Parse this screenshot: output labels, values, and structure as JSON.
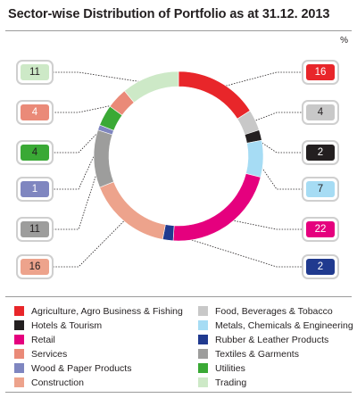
{
  "title": "Sector-wise Distribution of Portfolio as at 31.12. 2013",
  "unit_label": "%",
  "chart_data": {
    "type": "pie",
    "donut": true,
    "title": "Sector-wise Distribution of Portfolio as at 31.12. 2013",
    "unit": "%",
    "slices": [
      {
        "label": "Agriculture, Agro Business & Fishing",
        "value": 16,
        "color": "#e8262a",
        "text_color": "#ffffff"
      },
      {
        "label": "Food, Beverages & Tobacco",
        "value": 4,
        "color": "#c8c8c8",
        "text_color": "#231f20"
      },
      {
        "label": "Hotels & Tourism",
        "value": 2,
        "color": "#231f20",
        "text_color": "#ffffff"
      },
      {
        "label": "Metals, Chemicals & Engineering",
        "value": 7,
        "color": "#a6dcf4",
        "text_color": "#231f20"
      },
      {
        "label": "Retail",
        "value": 22,
        "color": "#e5007e",
        "text_color": "#ffffff"
      },
      {
        "label": "Rubber & Leather Products",
        "value": 2,
        "color": "#203a8f",
        "text_color": "#ffffff"
      },
      {
        "label": "Construction",
        "value": 16,
        "color": "#eda38c",
        "text_color": "#231f20"
      },
      {
        "label": "Textiles & Garments",
        "value": 11,
        "color": "#9d9d9c",
        "text_color": "#231f20"
      },
      {
        "label": "Wood & Paper Products",
        "value": 1,
        "color": "#7f86c0",
        "text_color": "#ffffff"
      },
      {
        "label": "Utilities",
        "value": 4,
        "color": "#3aa935",
        "text_color": "#231f20"
      },
      {
        "label": "Services",
        "value": 4,
        "color": "#ea8a78",
        "text_color": "#ffffff"
      },
      {
        "label": "Trading",
        "value": 11,
        "color": "#cde9c7",
        "text_color": "#231f20"
      }
    ],
    "legend": [
      {
        "label": "Agriculture, Agro Business & Fishing",
        "color": "#e8262a"
      },
      {
        "label": "Food, Beverages & Tobacco",
        "color": "#c8c8c8"
      },
      {
        "label": "Hotels & Tourism",
        "color": "#231f20"
      },
      {
        "label": "Metals, Chemicals & Engineering",
        "color": "#a6dcf4"
      },
      {
        "label": "Retail",
        "color": "#e5007e"
      },
      {
        "label": "Rubber & Leather Products",
        "color": "#203a8f"
      },
      {
        "label": "Services",
        "color": "#ea8a78"
      },
      {
        "label": "Textiles & Garments",
        "color": "#9d9d9c"
      },
      {
        "label": "Wood & Paper Products",
        "color": "#7f86c0"
      },
      {
        "label": "Utilities",
        "color": "#3aa935"
      },
      {
        "label": "Construction",
        "color": "#eda38c"
      },
      {
        "label": "Trading",
        "color": "#cde9c7"
      }
    ],
    "legend_placement": "bottom"
  }
}
